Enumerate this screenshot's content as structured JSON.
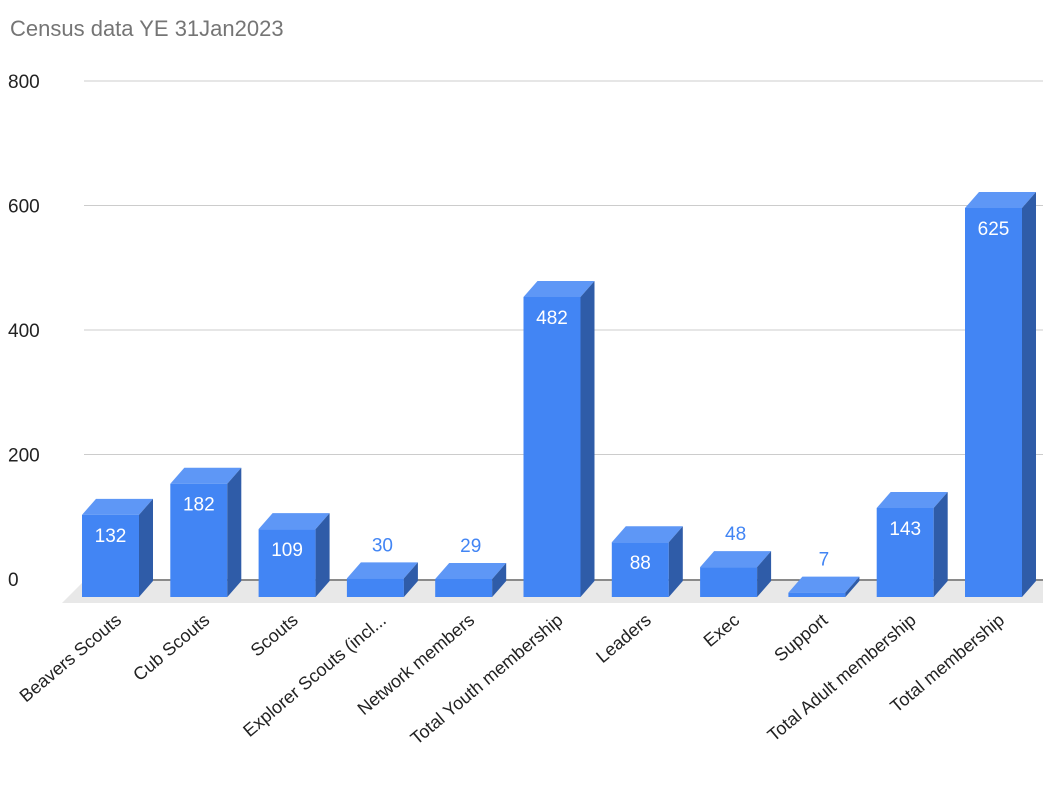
{
  "chart_data": {
    "type": "bar",
    "title": "Census data YE 31Jan2023",
    "categories": [
      "Beavers Scouts",
      "Cub Scouts",
      "Scouts",
      "Explorer Scouts (incl...",
      "Network members",
      "Total Youth membership",
      "Leaders",
      "Exec",
      "Support",
      "Total Adult membership",
      "Total membership"
    ],
    "values": [
      132,
      182,
      109,
      30,
      29,
      482,
      88,
      48,
      7,
      143,
      625
    ],
    "data_labels": [
      "132",
      "182",
      "109",
      "30",
      "29",
      "482",
      "88",
      "48",
      "7",
      "143",
      "625"
    ],
    "yticks": [
      "0",
      "200",
      "400",
      "600",
      "800"
    ],
    "ylim": [
      0,
      800
    ],
    "xlabel": "",
    "ylabel": "",
    "grid": true,
    "style": "3d",
    "colors": {
      "bar_front": "#4285f4",
      "bar_top": "#5e97f6",
      "bar_side": "#2f5ca8",
      "label_inside": "#ffffff",
      "label_outside": "#4285f4",
      "floor": "#e8e8e8",
      "grid": "#cccccc"
    }
  }
}
